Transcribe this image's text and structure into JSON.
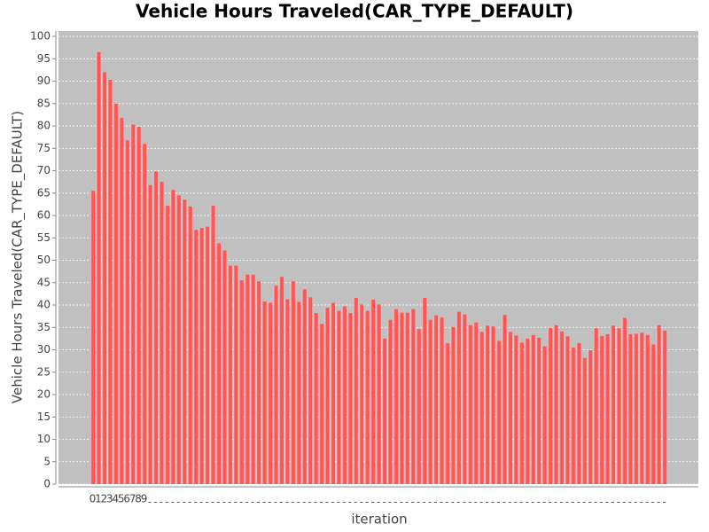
{
  "chart_data": {
    "type": "bar",
    "title": "Vehicle Hours Traveled(CAR_TYPE_DEFAULT)",
    "x_label": "iteration",
    "y_label": "Vehicle Hours Traveled(CAR_TYPE_DEFAULT)",
    "color": "#ff5555",
    "background": "#c0c0c0",
    "grid": true,
    "categories": [
      "0",
      "1",
      "2",
      "3",
      "4",
      "5",
      "6",
      "7",
      "8",
      "9",
      null,
      null,
      null,
      null,
      null,
      null,
      null,
      null,
      null,
      null,
      null,
      null,
      null,
      null,
      null,
      null,
      null,
      null,
      null,
      null,
      null,
      null,
      null,
      null,
      null,
      null,
      null,
      null,
      null,
      null,
      null,
      null,
      null,
      null,
      null,
      null,
      null,
      null,
      null,
      null,
      null,
      null,
      null,
      null,
      null,
      null,
      null,
      null,
      null,
      null,
      null,
      null,
      null,
      null,
      null,
      null,
      null,
      null,
      null,
      null,
      null,
      null,
      null,
      null,
      null,
      null,
      null,
      null,
      null,
      null,
      null,
      null,
      null,
      null,
      null,
      null,
      null,
      null,
      null,
      null,
      null,
      null,
      null,
      null,
      null,
      null,
      null,
      null,
      null,
      null,
      null
    ],
    "values": [
      65.5,
      96.5,
      92,
      90.3,
      85,
      81.8,
      76.8,
      80.3,
      79.8,
      76,
      66.8,
      69.8,
      67.5,
      62.2,
      65.7,
      64.5,
      63.5,
      62,
      56.8,
      57.2,
      57.5,
      62.2,
      53.8,
      52.2,
      48.8,
      48.8,
      45.5,
      46.8,
      46.8,
      45.3,
      40.8,
      40.5,
      44.3,
      46.3,
      41.3,
      45.3,
      40.7,
      43.5,
      41.7,
      38.2,
      35.8,
      39.4,
      40.5,
      38.7,
      39.7,
      38.2,
      41.6,
      40.1,
      38.7,
      41.2,
      40.1,
      32.5,
      36.7,
      39.1,
      38.3,
      38.3,
      39.1,
      34.6,
      41.6,
      36.7,
      37.7,
      37.2,
      31.5,
      35.1,
      38.5,
      37.9,
      35.5,
      36.1,
      34,
      35.4,
      35.2,
      32,
      37.8,
      34,
      33.2,
      31.6,
      32.5,
      33.3,
      32.7,
      30.8,
      34.9,
      35.5,
      34.1,
      33,
      30.5,
      31.5,
      28.2,
      29.9,
      34.8,
      33.1,
      33.5,
      35.4,
      34.8,
      37.1,
      33.5,
      33.6,
      33.8,
      33.3,
      31.2,
      35.5,
      34.3
    ],
    "ylim": [
      0,
      101.2
    ],
    "yticks": [
      0,
      5,
      10,
      15,
      20,
      25,
      30,
      35,
      40,
      45,
      50,
      55,
      60,
      65,
      70,
      75,
      80,
      85,
      90,
      95,
      100
    ]
  }
}
